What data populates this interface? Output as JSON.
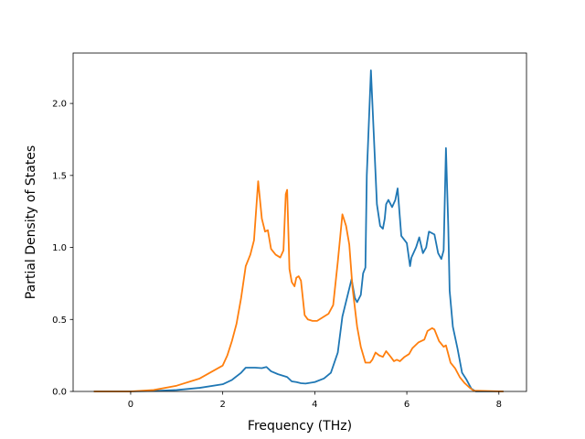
{
  "chart_data": {
    "type": "line",
    "xlabel": "Frequency (THz)",
    "ylabel": "Partial Density of States",
    "xlim": [
      -1.25,
      8.6
    ],
    "ylim": [
      0,
      2.35
    ],
    "xticks": [
      0,
      2,
      4,
      6,
      8
    ],
    "xtick_labels": [
      "0",
      "2",
      "4",
      "6",
      "8"
    ],
    "yticks": [
      0.0,
      0.5,
      1.0,
      1.5,
      2.0
    ],
    "ytick_labels": [
      "0.0",
      "0.5",
      "1.0",
      "1.5",
      "2.0"
    ],
    "grid": false,
    "series": [
      {
        "color": "#1f77b4",
        "points": [
          [
            -0.8,
            0.0
          ],
          [
            0.0,
            0.0
          ],
          [
            0.5,
            0.003
          ],
          [
            1.0,
            0.01
          ],
          [
            1.5,
            0.025
          ],
          [
            2.0,
            0.05
          ],
          [
            2.2,
            0.08
          ],
          [
            2.4,
            0.13
          ],
          [
            2.5,
            0.165
          ],
          [
            2.7,
            0.165
          ],
          [
            2.85,
            0.162
          ],
          [
            2.95,
            0.17
          ],
          [
            3.05,
            0.14
          ],
          [
            3.2,
            0.12
          ],
          [
            3.4,
            0.1
          ],
          [
            3.5,
            0.07
          ],
          [
            3.6,
            0.065
          ],
          [
            3.7,
            0.057
          ],
          [
            3.8,
            0.055
          ],
          [
            4.0,
            0.065
          ],
          [
            4.2,
            0.09
          ],
          [
            4.35,
            0.13
          ],
          [
            4.5,
            0.27
          ],
          [
            4.6,
            0.52
          ],
          [
            4.7,
            0.65
          ],
          [
            4.8,
            0.78
          ],
          [
            4.87,
            0.65
          ],
          [
            4.92,
            0.62
          ],
          [
            5.0,
            0.67
          ],
          [
            5.05,
            0.82
          ],
          [
            5.1,
            0.86
          ],
          [
            5.13,
            1.5
          ],
          [
            5.22,
            2.23
          ],
          [
            5.28,
            1.8
          ],
          [
            5.35,
            1.3
          ],
          [
            5.42,
            1.15
          ],
          [
            5.48,
            1.13
          ],
          [
            5.52,
            1.2
          ],
          [
            5.55,
            1.3
          ],
          [
            5.6,
            1.33
          ],
          [
            5.68,
            1.28
          ],
          [
            5.75,
            1.33
          ],
          [
            5.8,
            1.41
          ],
          [
            5.88,
            1.08
          ],
          [
            6.0,
            1.03
          ],
          [
            6.07,
            0.87
          ],
          [
            6.1,
            0.93
          ],
          [
            6.2,
            1.0
          ],
          [
            6.27,
            1.07
          ],
          [
            6.35,
            0.96
          ],
          [
            6.42,
            1.0
          ],
          [
            6.48,
            1.11
          ],
          [
            6.6,
            1.09
          ],
          [
            6.68,
            0.96
          ],
          [
            6.75,
            0.92
          ],
          [
            6.8,
            0.98
          ],
          [
            6.85,
            1.69
          ],
          [
            6.9,
            1.15
          ],
          [
            6.93,
            0.7
          ],
          [
            7.0,
            0.45
          ],
          [
            7.1,
            0.3
          ],
          [
            7.2,
            0.13
          ],
          [
            7.3,
            0.08
          ],
          [
            7.4,
            0.02
          ],
          [
            7.5,
            0.0
          ],
          [
            8.1,
            0.0
          ]
        ]
      },
      {
        "color": "#ff7f0e",
        "points": [
          [
            -0.8,
            0.0
          ],
          [
            0.0,
            0.0
          ],
          [
            0.5,
            0.01
          ],
          [
            1.0,
            0.04
          ],
          [
            1.5,
            0.09
          ],
          [
            2.0,
            0.18
          ],
          [
            2.1,
            0.25
          ],
          [
            2.2,
            0.35
          ],
          [
            2.3,
            0.47
          ],
          [
            2.4,
            0.65
          ],
          [
            2.5,
            0.87
          ],
          [
            2.6,
            0.95
          ],
          [
            2.68,
            1.05
          ],
          [
            2.77,
            1.46
          ],
          [
            2.85,
            1.2
          ],
          [
            2.92,
            1.11
          ],
          [
            2.98,
            1.12
          ],
          [
            3.05,
            0.99
          ],
          [
            3.15,
            0.95
          ],
          [
            3.25,
            0.93
          ],
          [
            3.32,
            0.98
          ],
          [
            3.37,
            1.37
          ],
          [
            3.4,
            1.4
          ],
          [
            3.45,
            0.85
          ],
          [
            3.5,
            0.76
          ],
          [
            3.56,
            0.73
          ],
          [
            3.6,
            0.79
          ],
          [
            3.65,
            0.8
          ],
          [
            3.7,
            0.77
          ],
          [
            3.78,
            0.53
          ],
          [
            3.85,
            0.5
          ],
          [
            3.95,
            0.49
          ],
          [
            4.05,
            0.49
          ],
          [
            4.2,
            0.52
          ],
          [
            4.3,
            0.54
          ],
          [
            4.4,
            0.6
          ],
          [
            4.5,
            0.9
          ],
          [
            4.6,
            1.23
          ],
          [
            4.68,
            1.15
          ],
          [
            4.75,
            1.02
          ],
          [
            4.82,
            0.72
          ],
          [
            4.92,
            0.45
          ],
          [
            5.0,
            0.31
          ],
          [
            5.1,
            0.2
          ],
          [
            5.2,
            0.2
          ],
          [
            5.25,
            0.22
          ],
          [
            5.32,
            0.27
          ],
          [
            5.4,
            0.25
          ],
          [
            5.48,
            0.24
          ],
          [
            5.55,
            0.28
          ],
          [
            5.65,
            0.24
          ],
          [
            5.72,
            0.21
          ],
          [
            5.78,
            0.22
          ],
          [
            5.85,
            0.21
          ],
          [
            5.95,
            0.24
          ],
          [
            6.05,
            0.26
          ],
          [
            6.12,
            0.3
          ],
          [
            6.25,
            0.34
          ],
          [
            6.38,
            0.36
          ],
          [
            6.45,
            0.42
          ],
          [
            6.55,
            0.44
          ],
          [
            6.6,
            0.43
          ],
          [
            6.7,
            0.35
          ],
          [
            6.8,
            0.31
          ],
          [
            6.85,
            0.32
          ],
          [
            6.95,
            0.2
          ],
          [
            7.05,
            0.16
          ],
          [
            7.15,
            0.1
          ],
          [
            7.25,
            0.06
          ],
          [
            7.35,
            0.03
          ],
          [
            7.45,
            0.005
          ],
          [
            8.1,
            0.0
          ]
        ]
      }
    ]
  }
}
